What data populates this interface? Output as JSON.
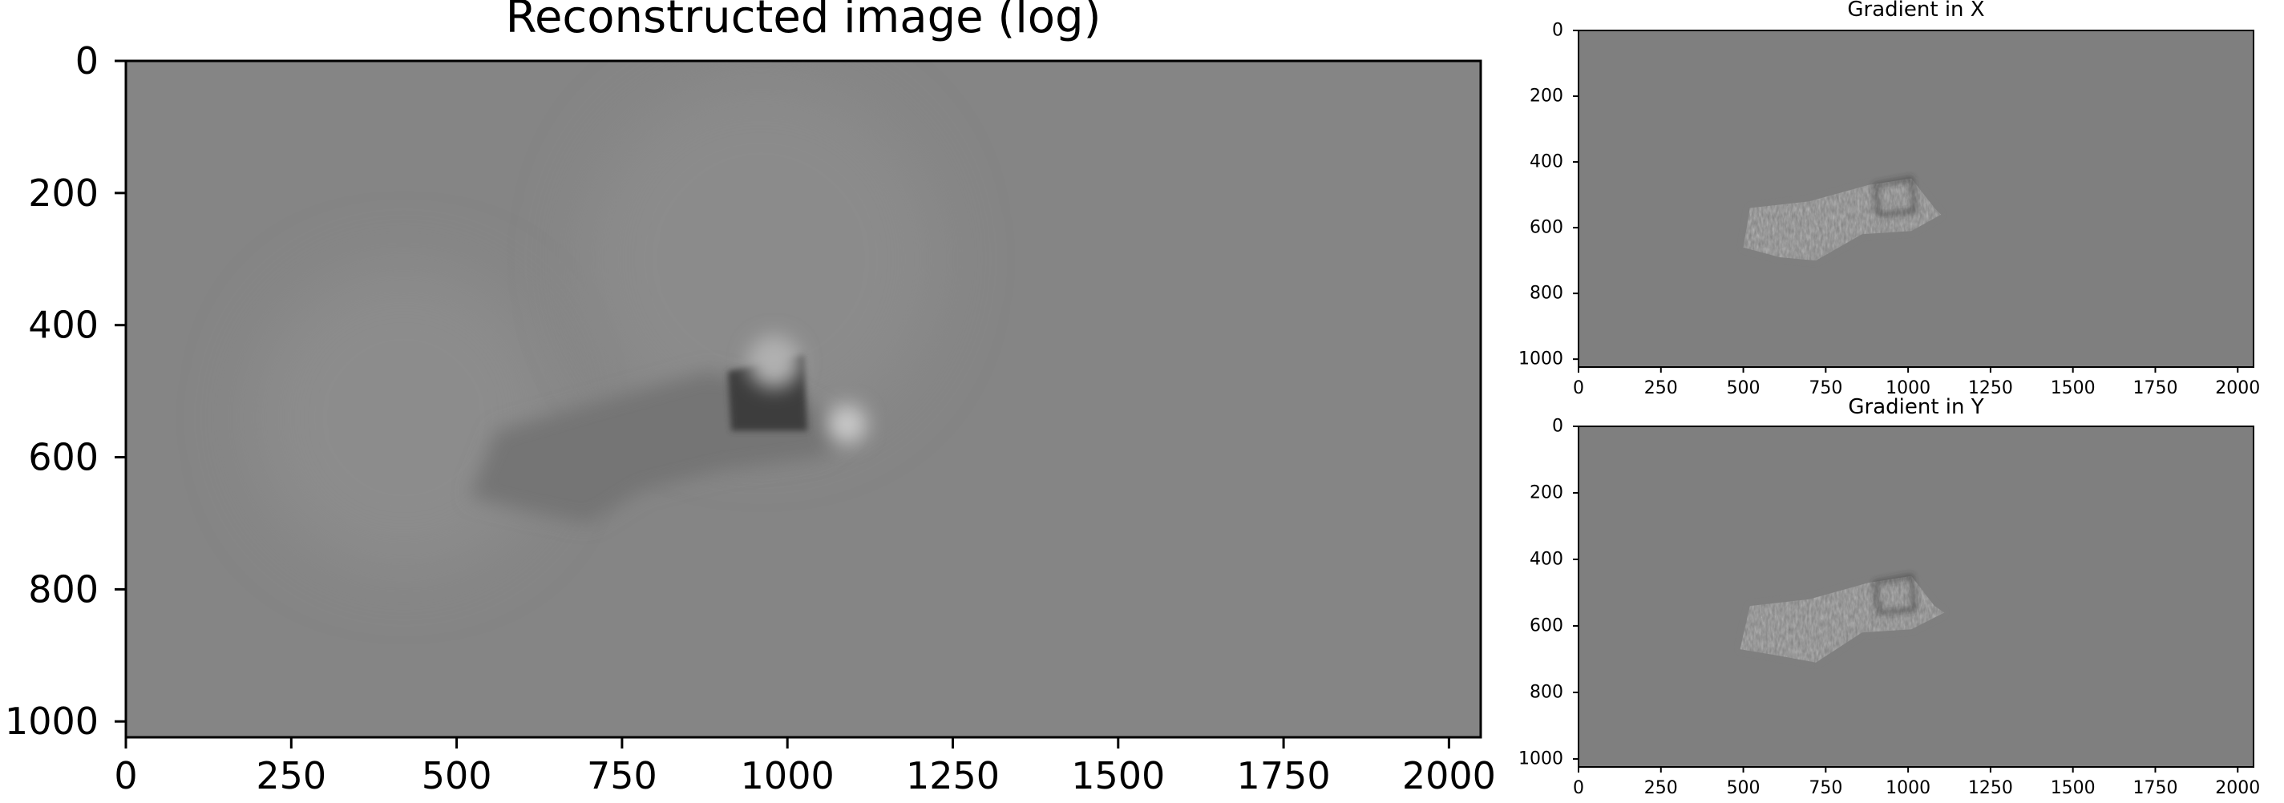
{
  "chart_data": [
    {
      "type": "heatmap",
      "title": "Reconstructed image (log)",
      "xlabel": "",
      "ylabel": "",
      "xlim": [
        0,
        2048
      ],
      "ylim": [
        1024,
        0
      ],
      "xticks": [
        0,
        250,
        500,
        750,
        1000,
        1250,
        1500,
        1750,
        2000
      ],
      "yticks": [
        0,
        200,
        400,
        600,
        800,
        1000
      ],
      "colormap": "gray",
      "background_color": "#858585",
      "grid": false,
      "features": [
        {
          "shape": "halo",
          "cx": 420,
          "cy": 540,
          "r": 230,
          "value": 0.06
        },
        {
          "shape": "halo",
          "cx": 960,
          "cy": 300,
          "r": 270,
          "value": 0.05
        },
        {
          "shape": "streak",
          "points": [
            [
              520,
              660
            ],
            [
              560,
              560
            ],
            [
              700,
              520
            ],
            [
              880,
              470
            ],
            [
              1000,
              500
            ],
            [
              1100,
              560
            ],
            [
              1050,
              600
            ],
            [
              900,
              620
            ],
            [
              780,
              650
            ],
            [
              700,
              700
            ],
            [
              600,
              680
            ]
          ],
          "value": -0.12
        },
        {
          "shape": "block",
          "points": [
            [
              910,
              470
            ],
            [
              1025,
              445
            ],
            [
              1030,
              560
            ],
            [
              915,
              560
            ]
          ],
          "value": -0.55
        },
        {
          "shape": "glow",
          "cx": 1090,
          "cy": 550,
          "r": 30,
          "value": 0.55
        },
        {
          "shape": "glow",
          "cx": 980,
          "cy": 455,
          "r": 40,
          "value": 0.35
        }
      ]
    },
    {
      "type": "heatmap",
      "title": "Gradient in X",
      "xlabel": "",
      "ylabel": "",
      "xlim": [
        0,
        2048
      ],
      "ylim": [
        1024,
        0
      ],
      "xticks": [
        0,
        250,
        500,
        750,
        1000,
        1250,
        1500,
        1750,
        2000
      ],
      "yticks": [
        0,
        200,
        400,
        600,
        800,
        1000
      ],
      "colormap": "gray",
      "background_color": "#7f7f7f",
      "grid": false,
      "features": [
        {
          "shape": "texture",
          "points": [
            [
              500,
              660
            ],
            [
              520,
              540
            ],
            [
              700,
              520
            ],
            [
              880,
              470
            ],
            [
              1010,
              450
            ],
            [
              1080,
              540
            ],
            [
              1100,
              560
            ],
            [
              1010,
              610
            ],
            [
              860,
              620
            ],
            [
              720,
              700
            ],
            [
              610,
              690
            ]
          ],
          "value": 0.0
        },
        {
          "shape": "edge",
          "points": [
            [
              900,
              470
            ],
            [
              1010,
              450
            ],
            [
              1020,
              550
            ],
            [
              910,
              560
            ]
          ],
          "value": -0.6
        }
      ]
    },
    {
      "type": "heatmap",
      "title": "Gradient in Y",
      "xlabel": "",
      "ylabel": "",
      "xlim": [
        0,
        2048
      ],
      "ylim": [
        1024,
        0
      ],
      "xticks": [
        0,
        250,
        500,
        750,
        1000,
        1250,
        1500,
        1750,
        2000
      ],
      "yticks": [
        0,
        200,
        400,
        600,
        800,
        1000
      ],
      "colormap": "gray",
      "background_color": "#7f7f7f",
      "grid": false,
      "features": [
        {
          "shape": "texture",
          "points": [
            [
              490,
              670
            ],
            [
              520,
              540
            ],
            [
              700,
              520
            ],
            [
              880,
              470
            ],
            [
              1010,
              450
            ],
            [
              1080,
              540
            ],
            [
              1110,
              560
            ],
            [
              1010,
              610
            ],
            [
              860,
              620
            ],
            [
              720,
              710
            ],
            [
              610,
              690
            ]
          ],
          "value": 0.0
        },
        {
          "shape": "edge",
          "points": [
            [
              900,
              470
            ],
            [
              1010,
              450
            ],
            [
              1020,
              550
            ],
            [
              910,
              560
            ]
          ],
          "value": -0.6
        }
      ]
    }
  ]
}
